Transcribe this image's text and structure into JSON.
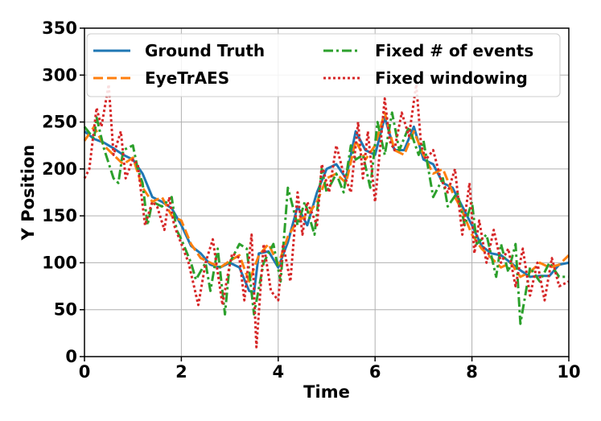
{
  "chart_data": {
    "type": "line",
    "xlabel": "Time",
    "ylabel": "Y Position",
    "xlim": [
      0,
      10
    ],
    "ylim": [
      0,
      350
    ],
    "xticks": [
      0,
      2,
      4,
      6,
      8,
      10
    ],
    "yticks": [
      0,
      50,
      100,
      150,
      200,
      250,
      300,
      350
    ],
    "grid": true,
    "legend": {
      "placement": "top",
      "columns": 2
    },
    "series": [
      {
        "name": "Ground Truth",
        "color": "#1f77b4",
        "style": "solid",
        "x": [
          0,
          0.2,
          0.4,
          0.6,
          0.8,
          1.0,
          1.2,
          1.4,
          1.6,
          1.8,
          2.0,
          2.2,
          2.4,
          2.6,
          2.8,
          3.0,
          3.2,
          3.4,
          3.5,
          3.6,
          3.8,
          4.0,
          4.2,
          4.4,
          4.6,
          4.8,
          5.0,
          5.2,
          5.4,
          5.6,
          5.8,
          6.0,
          6.2,
          6.4,
          6.6,
          6.8,
          7.0,
          7.2,
          7.4,
          7.6,
          7.8,
          8.0,
          8.2,
          8.4,
          8.6,
          8.8,
          9.0,
          9.2,
          9.4,
          9.6,
          9.8,
          10.0
        ],
        "y": [
          240,
          232,
          228,
          222,
          215,
          210,
          195,
          170,
          165,
          158,
          140,
          118,
          110,
          98,
          95,
          100,
          95,
          70,
          68,
          110,
          112,
          95,
          122,
          160,
          140,
          175,
          200,
          205,
          190,
          240,
          220,
          215,
          255,
          220,
          220,
          245,
          210,
          205,
          185,
          180,
          160,
          140,
          118,
          110,
          108,
          100,
          92,
          85,
          86,
          86,
          98,
          100
        ]
      },
      {
        "name": "EyeTrAES",
        "color": "#ff7f0e",
        "style": "dashed",
        "x": [
          0,
          0.2,
          0.4,
          0.6,
          0.8,
          1.0,
          1.2,
          1.4,
          1.6,
          1.8,
          2.0,
          2.2,
          2.4,
          2.6,
          2.8,
          3.0,
          3.2,
          3.4,
          3.6,
          3.8,
          4.0,
          4.2,
          4.4,
          4.6,
          4.8,
          5.0,
          5.2,
          5.4,
          5.6,
          5.8,
          6.0,
          6.2,
          6.4,
          6.6,
          6.8,
          7.0,
          7.2,
          7.4,
          7.6,
          7.8,
          8.0,
          8.2,
          8.4,
          8.6,
          8.8,
          9.0,
          9.2,
          9.4,
          9.6,
          9.8,
          10.0
        ],
        "y": [
          230,
          245,
          225,
          215,
          205,
          212,
          180,
          165,
          170,
          150,
          145,
          120,
          105,
          100,
          95,
          102,
          108,
          80,
          108,
          120,
          98,
          128,
          145,
          150,
          165,
          190,
          195,
          185,
          230,
          210,
          225,
          260,
          220,
          215,
          240,
          215,
          195,
          200,
          175,
          155,
          130,
          115,
          105,
          95,
          100,
          85,
          90,
          100,
          95,
          98,
          108
        ]
      },
      {
        "name": "Fixed # of events",
        "color": "#2ca02c",
        "style": "dashdot",
        "x": [
          0,
          0.2,
          0.25,
          0.4,
          0.6,
          0.7,
          0.8,
          1.0,
          1.1,
          1.2,
          1.3,
          1.4,
          1.6,
          1.8,
          1.9,
          2.0,
          2.2,
          2.3,
          2.5,
          2.6,
          2.75,
          2.9,
          3.0,
          3.2,
          3.35,
          3.5,
          3.7,
          3.9,
          4.05,
          4.2,
          4.4,
          4.55,
          4.75,
          4.9,
          5.0,
          5.2,
          5.35,
          5.5,
          5.6,
          5.75,
          5.9,
          6.05,
          6.2,
          6.35,
          6.5,
          6.7,
          6.9,
          7.0,
          7.2,
          7.4,
          7.5,
          7.7,
          7.85,
          8.0,
          8.1,
          8.3,
          8.5,
          8.6,
          8.75,
          8.9,
          9.0,
          9.2,
          9.4,
          9.6,
          9.8,
          10.0
        ],
        "y": [
          245,
          232,
          255,
          222,
          190,
          185,
          220,
          225,
          200,
          185,
          140,
          165,
          160,
          170,
          135,
          125,
          100,
          82,
          100,
          70,
          115,
          45,
          100,
          120,
          115,
          45,
          100,
          120,
          80,
          180,
          140,
          165,
          130,
          200,
          175,
          195,
          175,
          225,
          210,
          215,
          180,
          250,
          215,
          260,
          220,
          245,
          215,
          230,
          170,
          190,
          160,
          175,
          140,
          165,
          120,
          130,
          85,
          120,
          90,
          120,
          35,
          95,
          80,
          100,
          85,
          85
        ]
      },
      {
        "name": "Fixed windowing",
        "color": "#d62728",
        "style": "dotted",
        "x": [
          0,
          0.1,
          0.25,
          0.35,
          0.5,
          0.6,
          0.75,
          0.85,
          1.0,
          1.1,
          1.25,
          1.4,
          1.5,
          1.65,
          1.75,
          1.85,
          2.0,
          2.15,
          2.35,
          2.5,
          2.65,
          2.85,
          2.95,
          3.05,
          3.2,
          3.3,
          3.45,
          3.55,
          3.7,
          3.85,
          4.0,
          4.1,
          4.25,
          4.4,
          4.5,
          4.6,
          4.8,
          4.9,
          5.05,
          5.2,
          5.35,
          5.5,
          5.65,
          5.75,
          5.85,
          6.0,
          6.2,
          6.3,
          6.4,
          6.55,
          6.7,
          6.85,
          6.95,
          7.05,
          7.2,
          7.35,
          7.5,
          7.65,
          7.8,
          7.95,
          8.05,
          8.15,
          8.3,
          8.45,
          8.6,
          8.75,
          8.9,
          9.05,
          9.2,
          9.35,
          9.5,
          9.65,
          9.8,
          10.0
        ],
        "y": [
          190,
          200,
          265,
          245,
          290,
          215,
          240,
          190,
          210,
          205,
          140,
          165,
          160,
          135,
          170,
          140,
          120,
          100,
          55,
          100,
          125,
          55,
          85,
          110,
          105,
          60,
          130,
          10,
          120,
          70,
          60,
          120,
          80,
          175,
          130,
          165,
          140,
          205,
          175,
          225,
          195,
          175,
          250,
          190,
          240,
          165,
          275,
          230,
          220,
          260,
          235,
          290,
          225,
          210,
          220,
          190,
          175,
          200,
          130,
          185,
          110,
          145,
          100,
          135,
          100,
          115,
          75,
          115,
          65,
          100,
          60,
          105,
          75,
          80
        ]
      }
    ]
  }
}
